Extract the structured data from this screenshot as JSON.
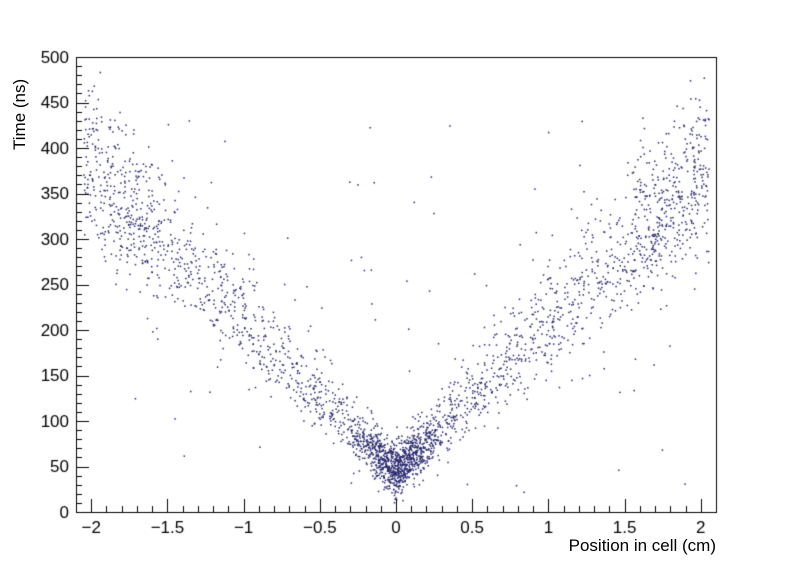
{
  "figure": {
    "background": "#ffffff"
  },
  "chart_data": {
    "type": "scatter",
    "title": "",
    "xlabel": "Position in cell (cm)",
    "ylabel": "Time (ns)",
    "xlim": [
      -2.1,
      2.1
    ],
    "ylim": [
      0,
      500
    ],
    "grid": false,
    "legend": "none",
    "marker_color": "#28286e",
    "axis_color": "#000000",
    "x_ticks": {
      "values": [
        -2,
        -1.5,
        -1,
        -0.5,
        0,
        0.5,
        1,
        1.5,
        2
      ],
      "labels": [
        "−2",
        "−1.5",
        "−1",
        "−0.5",
        "0",
        "0.5",
        "1",
        "1.5",
        "2"
      ],
      "minor_step": 0.1
    },
    "y_ticks": {
      "values": [
        0,
        50,
        100,
        150,
        200,
        250,
        300,
        350,
        400,
        450,
        500
      ],
      "labels": [
        "0",
        "50",
        "100",
        "150",
        "200",
        "250",
        "300",
        "350",
        "400",
        "450",
        "500"
      ],
      "minor_step": 10
    },
    "description": "V-shaped drift-time vs position scatter: time rises roughly linearly with |position|, from ~45 ns at the cell centre to ~370 ns at |x| = 2 cm, with a dense cluster of hits near x = 0 at 30-90 ns and sparse outliers throughout.",
    "generator": {
      "seed": 987654321,
      "arm_points": 2150,
      "t0_ns": 42,
      "slope_ns_per_cm": 163,
      "noise_sigma_base_ns": 12,
      "noise_sigma_per_cm_ns": 13,
      "upward_skew": 1.35,
      "edge_boost_fraction": 0.15,
      "edge_zone_cm": [
        1.55,
        2.05
      ],
      "x_range_cm": [
        -2.05,
        2.06
      ],
      "core": {
        "points": 780,
        "x_sigma_cm": 0.14,
        "t0_ns": 46,
        "t_sigma_ns": 14
      },
      "outliers": {
        "points": 110,
        "x_range_cm": [
          -2.0,
          2.0
        ],
        "t_range_ns": [
          15,
          430
        ]
      },
      "t_clip_ns": [
        6,
        497
      ]
    }
  }
}
